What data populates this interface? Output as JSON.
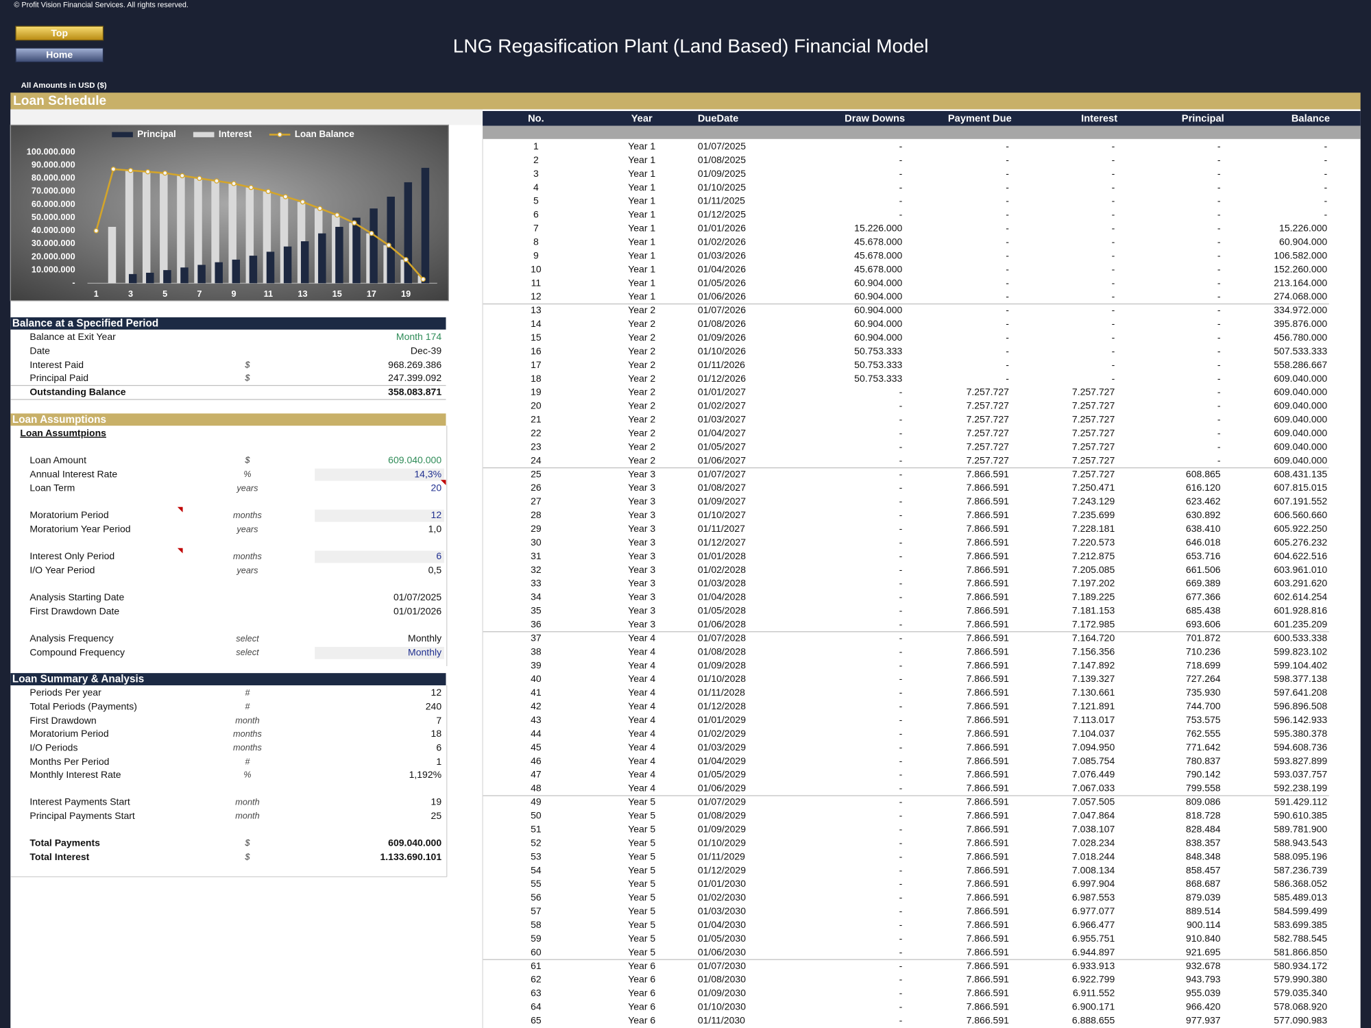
{
  "header": {
    "copyright": "© Profit Vision Financial Services. All rights reserved.",
    "buttons": [
      "Top",
      "Home"
    ],
    "title": "LNG Regasification Plant (Land Based) Financial Model",
    "currency_note": "All Amounts in  USD ($)"
  },
  "section_title": "Loan Schedule",
  "chart_data": {
    "type": "bar",
    "categories": [
      1,
      null,
      3,
      null,
      5,
      null,
      7,
      null,
      9,
      null,
      11,
      null,
      13,
      null,
      15,
      null,
      17,
      null,
      19,
      null
    ],
    "series": [
      {
        "name": "Principal",
        "type": "bar",
        "color": "#1d2840",
        "values": [
          0,
          0,
          7000000,
          8000000,
          10000000,
          12000000,
          14000000,
          16000000,
          18000000,
          21000000,
          24000000,
          28000000,
          32000000,
          38000000,
          43000000,
          50000000,
          57000000,
          66000000,
          77000000,
          88000000
        ]
      },
      {
        "name": "Interest",
        "type": "bar",
        "color": "#d9d9d9",
        "values": [
          0,
          43000000,
          86000000,
          85000000,
          84000000,
          82000000,
          80000000,
          78000000,
          76000000,
          73000000,
          70000000,
          66000000,
          62000000,
          57000000,
          52000000,
          46000000,
          38000000,
          29000000,
          18000000,
          6000000
        ]
      },
      {
        "name": "Loan Balance",
        "type": "line",
        "color": "#d4a52a",
        "values": [
          40000000,
          87000000,
          86000000,
          85000000,
          84000000,
          82000000,
          80000000,
          78000000,
          76000000,
          73000000,
          70000000,
          66000000,
          62000000,
          57000000,
          52000000,
          46000000,
          38000000,
          29000000,
          18000000,
          3000000
        ]
      }
    ],
    "ylim": [
      0,
      105000000
    ],
    "yticks": [
      {
        "value": 0,
        "label": "-"
      },
      {
        "value": 10000000,
        "label": "10.000.000"
      },
      {
        "value": 20000000,
        "label": "20.000.000"
      },
      {
        "value": 30000000,
        "label": "30.000.000"
      },
      {
        "value": 40000000,
        "label": "40.000.000"
      },
      {
        "value": 50000000,
        "label": "50.000.000"
      },
      {
        "value": 60000000,
        "label": "60.000.000"
      },
      {
        "value": 70000000,
        "label": "70.000.000"
      },
      {
        "value": 80000000,
        "label": "80.000.000"
      },
      {
        "value": 90000000,
        "label": "90.000.000"
      },
      {
        "value": 100000000,
        "label": "100.000.000"
      }
    ],
    "grid": false,
    "legend": "top"
  },
  "balance_panel": {
    "title": "Balance at a Specified Period",
    "rows": [
      {
        "label": "Balance at Exit Year",
        "value": "Month 174"
      },
      {
        "label": "Date",
        "value": "Dec-39"
      },
      {
        "label": "Interest Paid",
        "unit": "$",
        "value": "968.269.386"
      },
      {
        "label": "Principal Paid",
        "unit": "$",
        "value": "247.399.092"
      },
      {
        "label": "Outstanding Balance",
        "value": "358.083.871"
      }
    ]
  },
  "assumptions_panel": {
    "title": "Loan Assumptions",
    "subtitle": "Loan Assumtpions",
    "rows": [
      {
        "label": "Loan Amount",
        "unit": "$",
        "value": "609.040.000"
      },
      {
        "label": "Annual Interest Rate",
        "unit": "%",
        "value": "14,3%"
      },
      {
        "label": "Loan Term",
        "unit": "years",
        "value": "20"
      },
      {
        "label": "Moratorium Period",
        "unit": "months",
        "value": "12"
      },
      {
        "label": "Moratorium Year Period",
        "unit": "years",
        "value": "1,0"
      },
      {
        "label": "Interest Only Period",
        "unit": "months",
        "value": "6"
      },
      {
        "label": "I/O Year Period",
        "unit": "years",
        "value": "0,5"
      },
      {
        "label": "Analysis Starting Date",
        "value": "01/07/2025"
      },
      {
        "label": "First Drawdown Date",
        "value": "01/01/2026"
      },
      {
        "label": "Analysis Frequency",
        "unit": "select",
        "value": "Monthly"
      },
      {
        "label": "Compound Frequency",
        "unit": "select",
        "value": "Monthly"
      }
    ]
  },
  "summary_panel": {
    "title": "Loan Summary & Analysis",
    "rows": [
      {
        "label": "Periods Per year",
        "unit": "#",
        "value": "12"
      },
      {
        "label": "Total Periods (Payments)",
        "unit": "#",
        "value": "240"
      },
      {
        "label": "First Drawdown",
        "unit": "month",
        "value": "7"
      },
      {
        "label": "Moratorium Period",
        "unit": "months",
        "value": "18"
      },
      {
        "label": "I/O Periods",
        "unit": "months",
        "value": "6"
      },
      {
        "label": "Months Per Period",
        "unit": "#",
        "value": "1"
      },
      {
        "label": "Monthly Interest Rate",
        "unit": "%",
        "value": "1,192%"
      },
      {
        "label": "Interest Payments Start",
        "unit": "month",
        "value": "19"
      },
      {
        "label": "Principal Payments Start",
        "unit": "month",
        "value": "25"
      },
      {
        "label": "Total Payments",
        "unit": "$",
        "value": "609.040.000"
      },
      {
        "label": "Total Interest",
        "unit": "$",
        "value": "1.133.690.101"
      }
    ]
  },
  "schedule_table": {
    "columns": [
      "No.",
      "Year",
      "DueDate",
      "Draw Downs",
      "Payment Due",
      "Interest",
      "Principal",
      "Balance"
    ],
    "rows": [
      [
        1,
        "Year 1",
        "01/07/2025",
        "-",
        "-",
        "-",
        "-",
        "-"
      ],
      [
        2,
        "Year 1",
        "01/08/2025",
        "-",
        "-",
        "-",
        "-",
        "-"
      ],
      [
        3,
        "Year 1",
        "01/09/2025",
        "-",
        "-",
        "-",
        "-",
        "-"
      ],
      [
        4,
        "Year 1",
        "01/10/2025",
        "-",
        "-",
        "-",
        "-",
        "-"
      ],
      [
        5,
        "Year 1",
        "01/11/2025",
        "-",
        "-",
        "-",
        "-",
        "-"
      ],
      [
        6,
        "Year 1",
        "01/12/2025",
        "-",
        "-",
        "-",
        "-",
        "-"
      ],
      [
        7,
        "Year 1",
        "01/01/2026",
        "15.226.000",
        "-",
        "-",
        "-",
        "15.226.000"
      ],
      [
        8,
        "Year 1",
        "01/02/2026",
        "45.678.000",
        "-",
        "-",
        "-",
        "60.904.000"
      ],
      [
        9,
        "Year 1",
        "01/03/2026",
        "45.678.000",
        "-",
        "-",
        "-",
        "106.582.000"
      ],
      [
        10,
        "Year 1",
        "01/04/2026",
        "45.678.000",
        "-",
        "-",
        "-",
        "152.260.000"
      ],
      [
        11,
        "Year 1",
        "01/05/2026",
        "60.904.000",
        "-",
        "-",
        "-",
        "213.164.000"
      ],
      [
        12,
        "Year 1",
        "01/06/2026",
        "60.904.000",
        "-",
        "-",
        "-",
        "274.068.000"
      ],
      [
        13,
        "Year 2",
        "01/07/2026",
        "60.904.000",
        "-",
        "-",
        "-",
        "334.972.000"
      ],
      [
        14,
        "Year 2",
        "01/08/2026",
        "60.904.000",
        "-",
        "-",
        "-",
        "395.876.000"
      ],
      [
        15,
        "Year 2",
        "01/09/2026",
        "60.904.000",
        "-",
        "-",
        "-",
        "456.780.000"
      ],
      [
        16,
        "Year 2",
        "01/10/2026",
        "50.753.333",
        "-",
        "-",
        "-",
        "507.533.333"
      ],
      [
        17,
        "Year 2",
        "01/11/2026",
        "50.753.333",
        "-",
        "-",
        "-",
        "558.286.667"
      ],
      [
        18,
        "Year 2",
        "01/12/2026",
        "50.753.333",
        "-",
        "-",
        "-",
        "609.040.000"
      ],
      [
        19,
        "Year 2",
        "01/01/2027",
        "-",
        "7.257.727",
        "7.257.727",
        "-",
        "609.040.000"
      ],
      [
        20,
        "Year 2",
        "01/02/2027",
        "-",
        "7.257.727",
        "7.257.727",
        "-",
        "609.040.000"
      ],
      [
        21,
        "Year 2",
        "01/03/2027",
        "-",
        "7.257.727",
        "7.257.727",
        "-",
        "609.040.000"
      ],
      [
        22,
        "Year 2",
        "01/04/2027",
        "-",
        "7.257.727",
        "7.257.727",
        "-",
        "609.040.000"
      ],
      [
        23,
        "Year 2",
        "01/05/2027",
        "-",
        "7.257.727",
        "7.257.727",
        "-",
        "609.040.000"
      ],
      [
        24,
        "Year 2",
        "01/06/2027",
        "-",
        "7.257.727",
        "7.257.727",
        "-",
        "609.040.000"
      ],
      [
        25,
        "Year 3",
        "01/07/2027",
        "-",
        "7.866.591",
        "7.257.727",
        "608.865",
        "608.431.135"
      ],
      [
        26,
        "Year 3",
        "01/08/2027",
        "-",
        "7.866.591",
        "7.250.471",
        "616.120",
        "607.815.015"
      ],
      [
        27,
        "Year 3",
        "01/09/2027",
        "-",
        "7.866.591",
        "7.243.129",
        "623.462",
        "607.191.552"
      ],
      [
        28,
        "Year 3",
        "01/10/2027",
        "-",
        "7.866.591",
        "7.235.699",
        "630.892",
        "606.560.660"
      ],
      [
        29,
        "Year 3",
        "01/11/2027",
        "-",
        "7.866.591",
        "7.228.181",
        "638.410",
        "605.922.250"
      ],
      [
        30,
        "Year 3",
        "01/12/2027",
        "-",
        "7.866.591",
        "7.220.573",
        "646.018",
        "605.276.232"
      ],
      [
        31,
        "Year 3",
        "01/01/2028",
        "-",
        "7.866.591",
        "7.212.875",
        "653.716",
        "604.622.516"
      ],
      [
        32,
        "Year 3",
        "01/02/2028",
        "-",
        "7.866.591",
        "7.205.085",
        "661.506",
        "603.961.010"
      ],
      [
        33,
        "Year 3",
        "01/03/2028",
        "-",
        "7.866.591",
        "7.197.202",
        "669.389",
        "603.291.620"
      ],
      [
        34,
        "Year 3",
        "01/04/2028",
        "-",
        "7.866.591",
        "7.189.225",
        "677.366",
        "602.614.254"
      ],
      [
        35,
        "Year 3",
        "01/05/2028",
        "-",
        "7.866.591",
        "7.181.153",
        "685.438",
        "601.928.816"
      ],
      [
        36,
        "Year 3",
        "01/06/2028",
        "-",
        "7.866.591",
        "7.172.985",
        "693.606",
        "601.235.209"
      ],
      [
        37,
        "Year 4",
        "01/07/2028",
        "-",
        "7.866.591",
        "7.164.720",
        "701.872",
        "600.533.338"
      ],
      [
        38,
        "Year 4",
        "01/08/2028",
        "-",
        "7.866.591",
        "7.156.356",
        "710.236",
        "599.823.102"
      ],
      [
        39,
        "Year 4",
        "01/09/2028",
        "-",
        "7.866.591",
        "7.147.892",
        "718.699",
        "599.104.402"
      ],
      [
        40,
        "Year 4",
        "01/10/2028",
        "-",
        "7.866.591",
        "7.139.327",
        "727.264",
        "598.377.138"
      ],
      [
        41,
        "Year 4",
        "01/11/2028",
        "-",
        "7.866.591",
        "7.130.661",
        "735.930",
        "597.641.208"
      ],
      [
        42,
        "Year 4",
        "01/12/2028",
        "-",
        "7.866.591",
        "7.121.891",
        "744.700",
        "596.896.508"
      ],
      [
        43,
        "Year 4",
        "01/01/2029",
        "-",
        "7.866.591",
        "7.113.017",
        "753.575",
        "596.142.933"
      ],
      [
        44,
        "Year 4",
        "01/02/2029",
        "-",
        "7.866.591",
        "7.104.037",
        "762.555",
        "595.380.378"
      ],
      [
        45,
        "Year 4",
        "01/03/2029",
        "-",
        "7.866.591",
        "7.094.950",
        "771.642",
        "594.608.736"
      ],
      [
        46,
        "Year 4",
        "01/04/2029",
        "-",
        "7.866.591",
        "7.085.754",
        "780.837",
        "593.827.899"
      ],
      [
        47,
        "Year 4",
        "01/05/2029",
        "-",
        "7.866.591",
        "7.076.449",
        "790.142",
        "593.037.757"
      ],
      [
        48,
        "Year 4",
        "01/06/2029",
        "-",
        "7.866.591",
        "7.067.033",
        "799.558",
        "592.238.199"
      ],
      [
        49,
        "Year 5",
        "01/07/2029",
        "-",
        "7.866.591",
        "7.057.505",
        "809.086",
        "591.429.112"
      ],
      [
        50,
        "Year 5",
        "01/08/2029",
        "-",
        "7.866.591",
        "7.047.864",
        "818.728",
        "590.610.385"
      ],
      [
        51,
        "Year 5",
        "01/09/2029",
        "-",
        "7.866.591",
        "7.038.107",
        "828.484",
        "589.781.900"
      ],
      [
        52,
        "Year 5",
        "01/10/2029",
        "-",
        "7.866.591",
        "7.028.234",
        "838.357",
        "588.943.543"
      ],
      [
        53,
        "Year 5",
        "01/11/2029",
        "-",
        "7.866.591",
        "7.018.244",
        "848.348",
        "588.095.196"
      ],
      [
        54,
        "Year 5",
        "01/12/2029",
        "-",
        "7.866.591",
        "7.008.134",
        "858.457",
        "587.236.739"
      ],
      [
        55,
        "Year 5",
        "01/01/2030",
        "-",
        "7.866.591",
        "6.997.904",
        "868.687",
        "586.368.052"
      ],
      [
        56,
        "Year 5",
        "01/02/2030",
        "-",
        "7.866.591",
        "6.987.553",
        "879.039",
        "585.489.013"
      ],
      [
        57,
        "Year 5",
        "01/03/2030",
        "-",
        "7.866.591",
        "6.977.077",
        "889.514",
        "584.599.499"
      ],
      [
        58,
        "Year 5",
        "01/04/2030",
        "-",
        "7.866.591",
        "6.966.477",
        "900.114",
        "583.699.385"
      ],
      [
        59,
        "Year 5",
        "01/05/2030",
        "-",
        "7.866.591",
        "6.955.751",
        "910.840",
        "582.788.545"
      ],
      [
        60,
        "Year 5",
        "01/06/2030",
        "-",
        "7.866.591",
        "6.944.897",
        "921.695",
        "581.866.850"
      ],
      [
        61,
        "Year 6",
        "01/07/2030",
        "-",
        "7.866.591",
        "6.933.913",
        "932.678",
        "580.934.172"
      ],
      [
        62,
        "Year 6",
        "01/08/2030",
        "-",
        "7.866.591",
        "6.922.799",
        "943.793",
        "579.990.380"
      ],
      [
        63,
        "Year 6",
        "01/09/2030",
        "-",
        "7.866.591",
        "6.911.552",
        "955.039",
        "579.035.340"
      ],
      [
        64,
        "Year 6",
        "01/10/2030",
        "-",
        "7.866.591",
        "6.900.171",
        "966.420",
        "578.068.920"
      ],
      [
        65,
        "Year 6",
        "01/11/2030",
        "-",
        "7.866.591",
        "6.888.655",
        "977.937",
        "577.090.983"
      ]
    ]
  }
}
